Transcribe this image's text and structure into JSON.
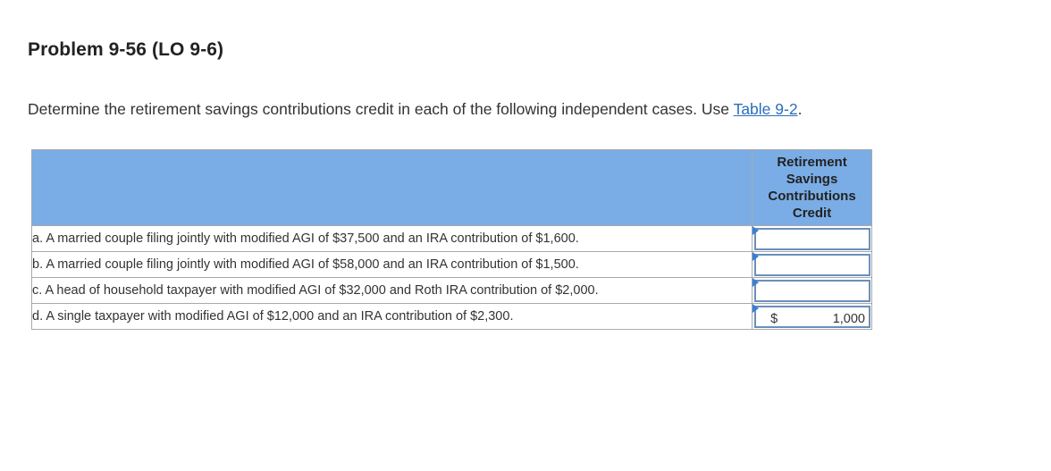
{
  "problem": {
    "title": "Problem 9-56 (LO 9-6)",
    "instruction_text": "Determine the retirement savings contributions credit in each of the following independent cases. Use ",
    "instruction_link": "Table 9-2",
    "instruction_end": "."
  },
  "table": {
    "column_header": "Retirement Savings Contributions Credit",
    "rows": [
      {
        "description": "a. A married couple filing jointly with modified AGI of $37,500 and an IRA contribution of $1,600.",
        "currency": "",
        "value": ""
      },
      {
        "description": "b. A married couple filing jointly with modified AGI of $58,000 and an IRA contribution of $1,500.",
        "currency": "",
        "value": ""
      },
      {
        "description": "c. A head of household taxpayer with modified AGI of $32,000 and Roth IRA contribution of $2,000.",
        "currency": "",
        "value": ""
      },
      {
        "description": "d. A single taxpayer with modified AGI of $12,000 and an IRA contribution of $2,300.",
        "currency": "$",
        "value": "1,000"
      }
    ]
  },
  "colors": {
    "header_bg": "#7aade6",
    "link": "#2a6ebb",
    "input_border": "#6b8fbd",
    "marker": "#3a7fd5"
  }
}
